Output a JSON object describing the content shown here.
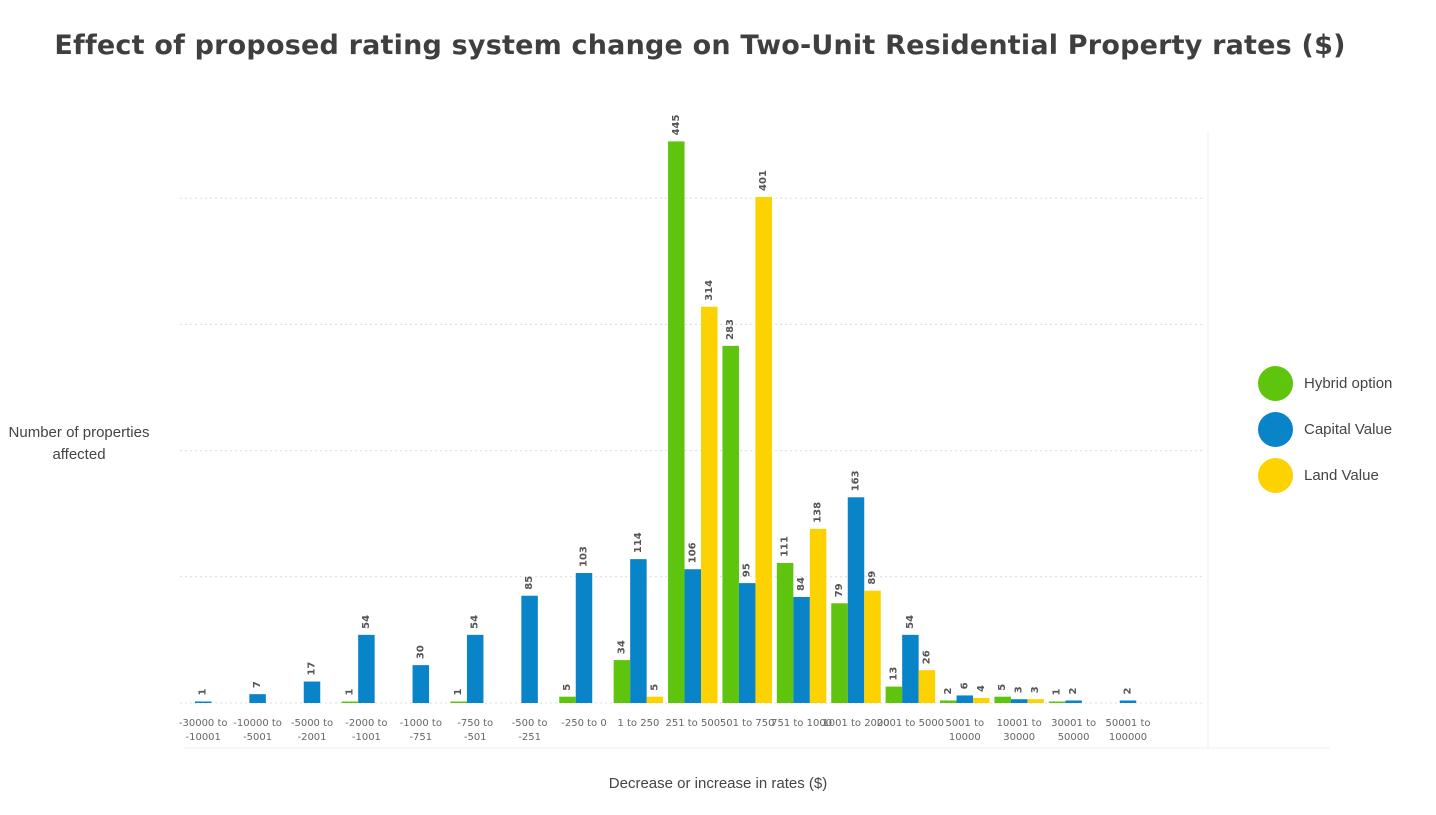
{
  "chart_data": {
    "type": "bar",
    "title": "Effect of proposed rating system change on Two-Unit Residential Property rates ($)",
    "xlabel": "Decrease or increase in rates ($)",
    "ylabel": "Number of properties affected",
    "ylim": [
      0,
      450
    ],
    "grid": true,
    "legend_position": "right",
    "categories": [
      "-30000 to -10001",
      "-10000 to -5001",
      "-5000 to -2001",
      "-2000 to -1001",
      "-1000 to -751",
      "-750 to -501",
      "-500 to -251",
      "-250 to 0",
      "1 to 250",
      "251 to 500",
      "501 to 750",
      "751 to 1000",
      "1001 to 2000",
      "2001 to 5000",
      "5001 to 10000",
      "10001 to 30000",
      "30001 to 50000",
      "50001 to 100000"
    ],
    "series": [
      {
        "name": "Hybrid option",
        "color": "#5ec40e",
        "values": [
          null,
          null,
          null,
          1,
          null,
          1,
          null,
          5,
          34,
          445,
          283,
          111,
          79,
          13,
          2,
          5,
          1,
          null
        ]
      },
      {
        "name": "Capital Value",
        "color": "#0a84c8",
        "values": [
          1,
          7,
          17,
          54,
          30,
          54,
          85,
          103,
          114,
          106,
          95,
          84,
          163,
          54,
          6,
          3,
          2,
          2
        ]
      },
      {
        "name": "Land Value",
        "color": "#fcd200",
        "values": [
          null,
          null,
          null,
          null,
          null,
          null,
          null,
          null,
          5,
          314,
          401,
          138,
          89,
          26,
          4,
          3,
          null,
          null
        ]
      }
    ]
  }
}
